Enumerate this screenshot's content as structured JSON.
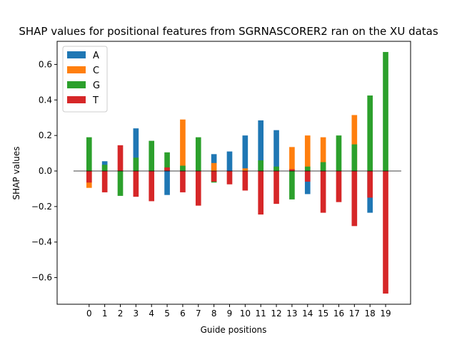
{
  "chart_data": {
    "type": "bar",
    "stacked": true,
    "title": "SHAP values for positional features from SGRNASCORER2 ran on the XU datas",
    "xlabel": "Guide positions",
    "ylabel": "SHAP values",
    "ylim": [
      -0.75,
      0.73
    ],
    "yticks": [
      -0.6,
      -0.4,
      -0.2,
      0.0,
      0.2,
      0.4,
      0.6
    ],
    "ytick_labels": [
      "−0.6",
      "−0.4",
      "−0.2",
      "0.0",
      "0.2",
      "0.4",
      "0.6"
    ],
    "categories": [
      "0",
      "1",
      "2",
      "3",
      "4",
      "5",
      "6",
      "7",
      "8",
      "9",
      "10",
      "11",
      "12",
      "13",
      "14",
      "15",
      "16",
      "17",
      "18",
      "19"
    ],
    "zero_line": true,
    "legend_position": "upper-left",
    "series": [
      {
        "name": "A",
        "color": "#1f77b4",
        "values": [
          0.0,
          0.055,
          0.0,
          0.24,
          0.0,
          -0.135,
          0.0,
          0.0,
          0.095,
          0.11,
          0.2,
          0.285,
          0.23,
          0.0,
          -0.13,
          0.0,
          0.0,
          0.0,
          -0.235,
          0.0
        ]
      },
      {
        "name": "C",
        "color": "#ff7f0e",
        "values": [
          -0.095,
          0.0,
          0.0,
          0.0,
          0.0,
          0.0,
          0.29,
          0.0,
          0.045,
          0.0,
          0.015,
          0.0,
          0.0,
          0.135,
          0.2,
          0.19,
          0.0,
          0.315,
          0.0,
          0.0
        ]
      },
      {
        "name": "G",
        "color": "#2ca02c",
        "values": [
          0.19,
          0.035,
          -0.14,
          0.075,
          0.17,
          0.105,
          0.03,
          0.19,
          -0.065,
          0.0,
          0.0,
          0.06,
          0.025,
          -0.16,
          0.025,
          0.05,
          0.2,
          0.15,
          0.425,
          0.67
        ]
      },
      {
        "name": "T",
        "color": "#d62728",
        "values": [
          -0.065,
          -0.12,
          0.145,
          -0.145,
          -0.17,
          0.02,
          -0.12,
          -0.195,
          -0.06,
          -0.075,
          -0.11,
          -0.245,
          -0.185,
          0.01,
          -0.06,
          -0.235,
          -0.175,
          -0.31,
          -0.15,
          -0.69
        ]
      }
    ]
  }
}
